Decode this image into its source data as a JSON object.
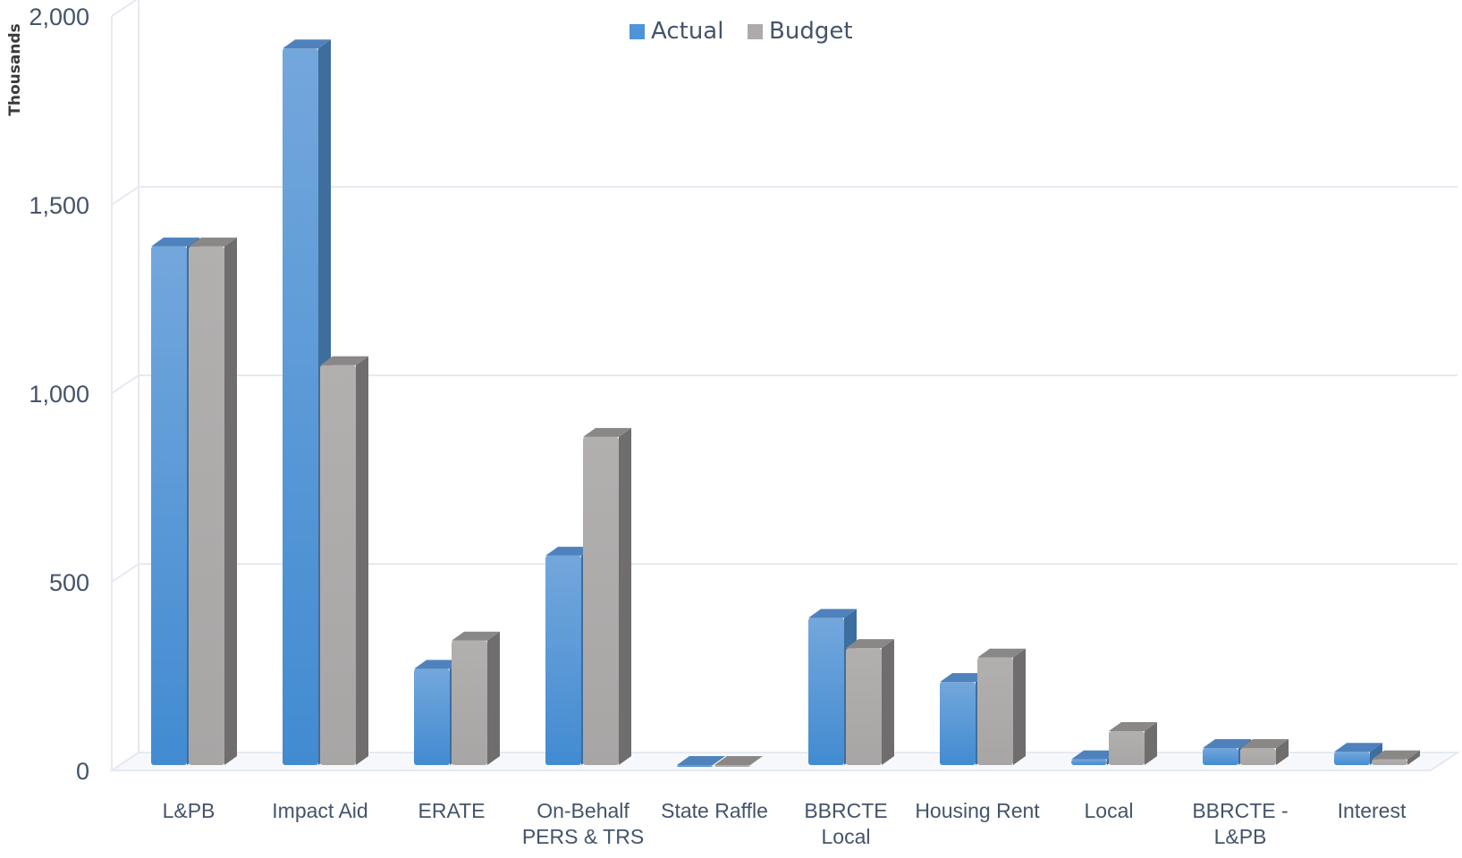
{
  "chart_data": {
    "type": "bar",
    "title": "",
    "ylabel": "Thousands",
    "xlabel": "",
    "ylim": [
      0,
      2000
    ],
    "yticks": [
      0,
      500,
      1000,
      1500,
      2000
    ],
    "ytick_labels": [
      "0",
      "500",
      "1,000",
      "1,500",
      "2,000"
    ],
    "grid": true,
    "legend_position": "top-center",
    "categories": [
      [
        "L&PB"
      ],
      [
        "Impact Aid"
      ],
      [
        "ERATE"
      ],
      [
        "On-Behalf",
        "PERS & TRS"
      ],
      [
        "State Raffle"
      ],
      [
        "BBRCTE",
        "Local"
      ],
      [
        "Housing Rent"
      ],
      [
        "Local"
      ],
      [
        "BBRCTE -",
        "L&PB"
      ],
      [
        "Interest"
      ]
    ],
    "series": [
      {
        "name": "Actual",
        "color": "#4e94d8",
        "values": [
          1375,
          1900,
          255,
          555,
          0,
          390,
          220,
          15,
          45,
          35
        ]
      },
      {
        "name": "Budget",
        "color": "#aeaaaa",
        "values": [
          1375,
          1060,
          330,
          870,
          0,
          310,
          285,
          90,
          45,
          15
        ]
      }
    ]
  }
}
